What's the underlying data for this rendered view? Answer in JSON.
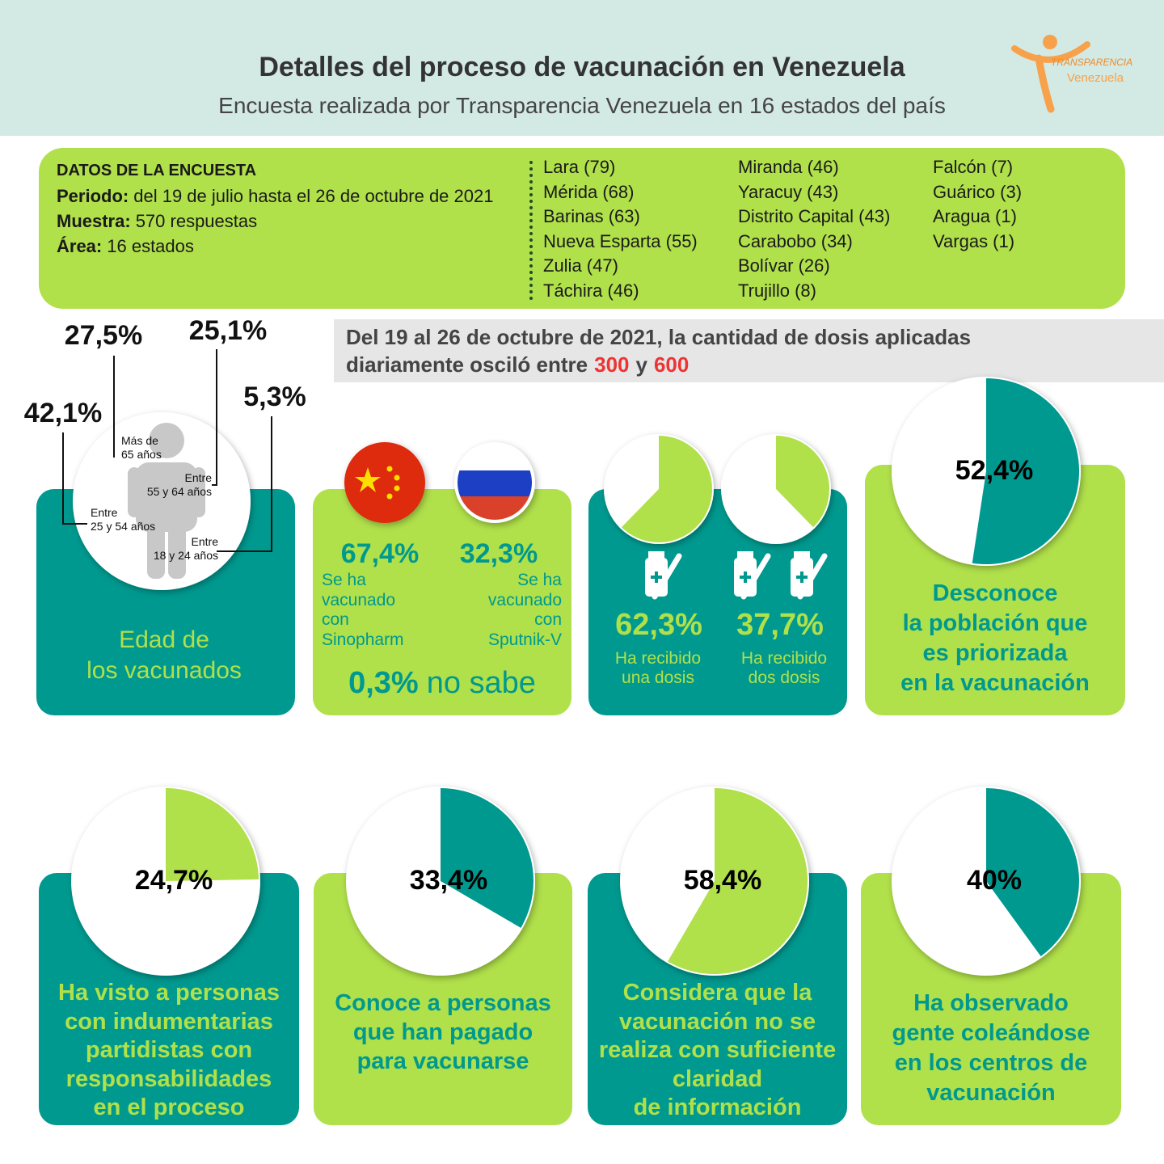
{
  "header": {
    "title": "Detalles del proceso de vacunación en Venezuela",
    "subtitle": "Encuesta realizada por Transparencia Venezuela en 16 estados del país",
    "logo": {
      "line1": "TRANSPARENCIA",
      "line2": "Venezuela"
    }
  },
  "survey": {
    "heading": "DATOS DE LA ENCUESTA",
    "fields": [
      {
        "label": "Periodo:",
        "value": "del 19 de julio hasta el 26 de octubre de 2021"
      },
      {
        "label": "Muestra:",
        "value": "570 respuestas"
      },
      {
        "label": "Área:",
        "value": "16 estados"
      }
    ],
    "states": [
      [
        "Lara (79)",
        "Mérida (68)",
        "Barinas (63)",
        "Nueva Esparta (55)",
        "Zulia (47)",
        "Táchira (46)"
      ],
      [
        "Miranda (46)",
        "Yaracuy (43)",
        "Distrito Capital (43)",
        "Carabobo (34)",
        "Bolívar (26)",
        "Trujillo (8)"
      ],
      [
        "Falcón (7)",
        "Guárico (3)",
        "Aragua (1)",
        "Vargas (1)"
      ]
    ]
  },
  "dose_note": {
    "line1": "Del 19 al 26 de octubre de 2021, la cantidad de dosis aplicadas",
    "line2": "diariamente osciló entre",
    "low": "300",
    "joiner": "y",
    "high": "600"
  },
  "age_card": {
    "title_lines": [
      "Edad de",
      "los vacunados"
    ],
    "groups": [
      {
        "label_lines": [
          "Más de",
          "65 años"
        ],
        "percent": "27,5%"
      },
      {
        "label_lines": [
          "Entre",
          "55 y 64 años"
        ],
        "percent": "25,1%"
      },
      {
        "label_lines": [
          "Entre",
          "25 y 54 años"
        ],
        "percent": "42,1%"
      },
      {
        "label_lines": [
          "Entre",
          "18 y 24 años"
        ],
        "percent": "5,3%"
      }
    ]
  },
  "vaccine_card": {
    "vaccines": [
      {
        "percent": "67,4%",
        "caption_lines": [
          "Se ha",
          "vacunado",
          "con",
          "Sinopharm"
        ]
      },
      {
        "percent": "32,3%",
        "caption_lines": [
          "Se ha",
          "vacunado",
          "con",
          "Sputnik-V"
        ]
      }
    ],
    "unknown": {
      "percent": "0,3%",
      "text": "no sabe"
    }
  },
  "doses_card": {
    "doses": [
      {
        "value": 62.3,
        "label": "62,3%",
        "caption_lines": [
          "Ha recibido",
          "una dosis"
        ]
      },
      {
        "value": 37.7,
        "label": "37,7%",
        "caption_lines": [
          "Ha recibido",
          "dos dosis"
        ]
      }
    ]
  },
  "stats": [
    {
      "value": 52.4,
      "label": "52,4%",
      "caption_lines": [
        "Desconoce",
        "la población que",
        "es priorizada",
        "en la vacunación"
      ]
    },
    {
      "value": 24.7,
      "label": "24,7%",
      "caption_lines": [
        "Ha visto a personas",
        "con indumentarias",
        "partidistas con",
        "responsabilidades",
        "en el proceso"
      ]
    },
    {
      "value": 33.4,
      "label": "33,4%",
      "caption_lines": [
        "Conoce a personas",
        "que han pagado",
        "para vacunarse"
      ]
    },
    {
      "value": 58.4,
      "label": "58,4%",
      "caption_lines": [
        "Considera que la",
        "vacunación no se",
        "realiza con suficiente",
        "claridad",
        "de información"
      ]
    },
    {
      "value": 40,
      "label": "40%",
      "caption_lines": [
        "Ha observado",
        "gente coleándose",
        "en los centros de",
        "vacunación"
      ]
    }
  ]
}
